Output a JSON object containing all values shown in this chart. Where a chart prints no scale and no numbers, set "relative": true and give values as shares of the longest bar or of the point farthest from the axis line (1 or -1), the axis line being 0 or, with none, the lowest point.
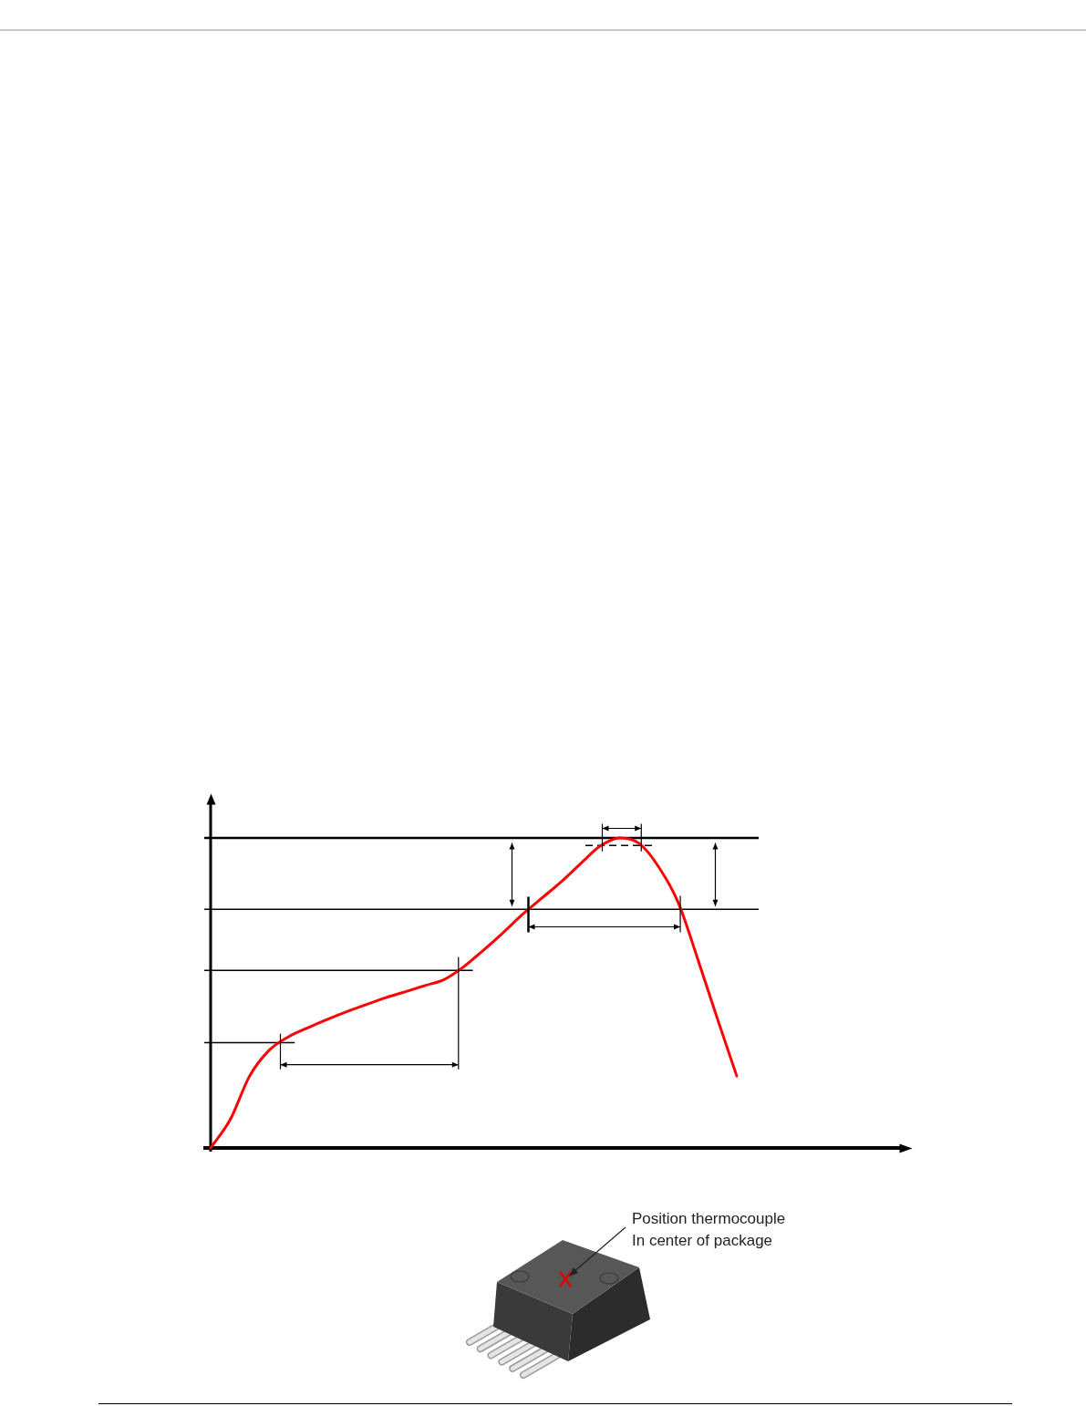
{
  "chart_data": {
    "type": "line",
    "relative": true,
    "categories": [
      null,
      null,
      null,
      null,
      null,
      null,
      null,
      null,
      null,
      null,
      null,
      null,
      null,
      null,
      null,
      null,
      null,
      null,
      null,
      null,
      null,
      null,
      null,
      null,
      null,
      null,
      null,
      null
    ],
    "values": [
      0,
      0.091,
      0.232,
      0.315,
      0.359,
      0.388,
      0.415,
      0.44,
      0.463,
      0.485,
      0.504,
      0.524,
      0.544,
      0.585,
      0.638,
      0.694,
      0.753,
      0.806,
      0.859,
      0.918,
      0.974,
      1,
      0.982,
      0.906,
      0.791,
      0.609,
      0.418,
      0.232
    ],
    "color": "#ff0000",
    "ref_lines": [
      {
        "axis": "y",
        "value": 1
      },
      {
        "axis": "y",
        "value": 0.976,
        "line_style": "dashed"
      },
      {
        "axis": "y",
        "value": 0.77
      },
      {
        "axis": "y",
        "value": 0.573
      },
      {
        "axis": "y",
        "value": 0.34
      }
    ],
    "annotations": [
      "Position thermocouple\nIn center of package"
    ]
  }
}
